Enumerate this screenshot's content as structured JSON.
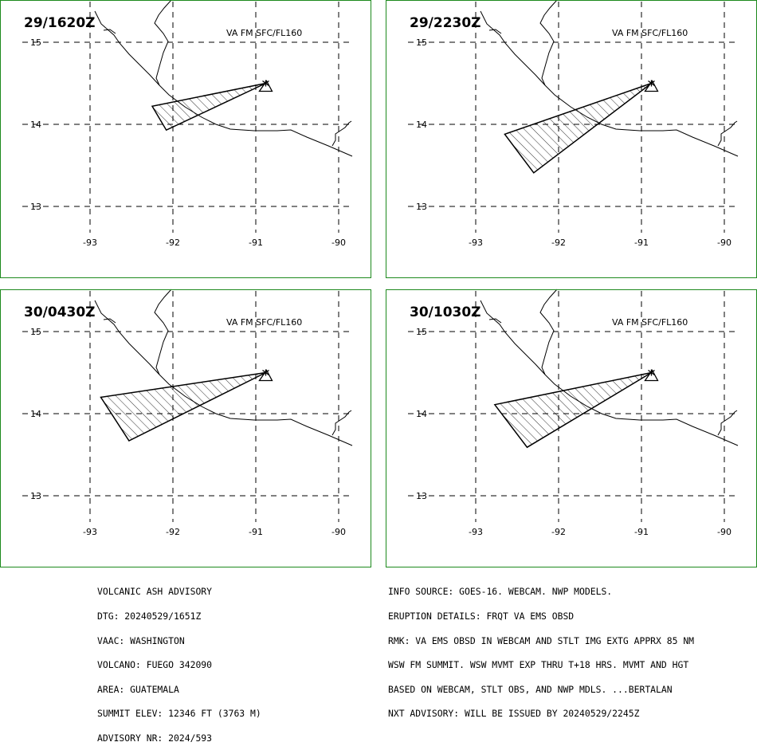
{
  "colors": {
    "frame": "#1d8a1d",
    "ink": "#000000",
    "background": "#ffffff"
  },
  "ticks": {
    "lat": [
      "15",
      "14",
      "13"
    ],
    "lon": [
      "-93",
      "-92",
      "-91",
      "-90"
    ]
  },
  "panels": [
    {
      "time": "29/1620Z",
      "level": "VA FM SFC/FL160",
      "plume": [
        [
          14.5,
          -90.88
        ],
        [
          14.22,
          -92.25
        ],
        [
          13.93,
          -92.08
        ]
      ]
    },
    {
      "time": "29/2230Z",
      "level": "VA FM SFC/FL160",
      "plume": [
        [
          14.5,
          -90.88
        ],
        [
          13.88,
          -92.65
        ],
        [
          13.41,
          -92.3
        ]
      ]
    },
    {
      "time": "30/0430Z",
      "level": "VA FM SFC/FL160",
      "plume": [
        [
          14.5,
          -90.88
        ],
        [
          14.2,
          -92.87
        ],
        [
          13.67,
          -92.53
        ]
      ]
    },
    {
      "time": "30/1030Z",
      "level": "VA FM SFC/FL160",
      "plume": [
        [
          14.5,
          -90.88
        ],
        [
          14.11,
          -92.77
        ],
        [
          13.59,
          -92.38
        ]
      ]
    }
  ],
  "volcano_symbol": "volcano-triangle-icon",
  "advisory_left": [
    "VOLCANIC ASH ADVISORY",
    "DTG: 20240529/1651Z",
    "VAAC: WASHINGTON",
    "VOLCANO: FUEGO 342090",
    "AREA: GUATEMALA",
    "SUMMIT ELEV: 12346 FT (3763 M)",
    "ADVISORY NR: 2024/593"
  ],
  "advisory_right": [
    "INFO SOURCE: GOES-16. WEBCAM. NWP MODELS.",
    "ERUPTION DETAILS: FRQT VA EMS OBSD",
    "RMK: VA EMS OBSD IN WEBCAM AND STLT IMG EXTG APPRX 85 NM",
    "WSW FM SUMMIT. WSW MVMT EXP THRU T+18 HRS. MVMT AND HGT",
    "BASED ON WEBCAM, STLT OBS, AND NWP MDLS. ...BERTALAN",
    "NXT ADVISORY: WILL BE ISSUED BY 20240529/2245Z"
  ]
}
